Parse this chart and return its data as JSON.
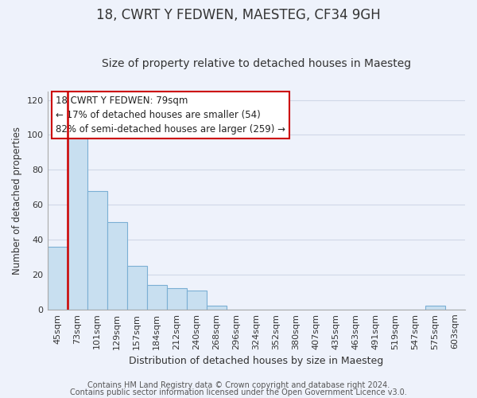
{
  "title": "18, CWRT Y FEDWEN, MAESTEG, CF34 9GH",
  "subtitle": "Size of property relative to detached houses in Maesteg",
  "xlabel": "Distribution of detached houses by size in Maesteg",
  "ylabel": "Number of detached properties",
  "bar_labels": [
    "45sqm",
    "73sqm",
    "101sqm",
    "129sqm",
    "157sqm",
    "184sqm",
    "212sqm",
    "240sqm",
    "268sqm",
    "296sqm",
    "324sqm",
    "352sqm",
    "380sqm",
    "407sqm",
    "435sqm",
    "463sqm",
    "491sqm",
    "519sqm",
    "547sqm",
    "575sqm",
    "603sqm"
  ],
  "bar_values": [
    36,
    100,
    68,
    50,
    25,
    14,
    12,
    11,
    2,
    0,
    0,
    0,
    0,
    0,
    0,
    0,
    0,
    0,
    0,
    2,
    0
  ],
  "bar_color": "#c8dff0",
  "bar_edge_color": "#7bafd4",
  "vline_x": 0.57,
  "vline_color": "#cc0000",
  "vline_linewidth": 1.8,
  "annotation_text": "18 CWRT Y FEDWEN: 79sqm\n← 17% of detached houses are smaller (54)\n82% of semi-detached houses are larger (259) →",
  "ylim": [
    0,
    125
  ],
  "yticks": [
    0,
    20,
    40,
    60,
    80,
    100,
    120
  ],
  "footer_line1": "Contains HM Land Registry data © Crown copyright and database right 2024.",
  "footer_line2": "Contains public sector information licensed under the Open Government Licence v3.0.",
  "background_color": "#eef2fb",
  "plot_bg_color": "#eef2fb",
  "grid_color": "#d0d8e8",
  "title_fontsize": 12,
  "subtitle_fontsize": 10,
  "xlabel_fontsize": 9,
  "ylabel_fontsize": 8.5,
  "tick_fontsize": 8,
  "annotation_fontsize": 8.5,
  "footer_fontsize": 7
}
